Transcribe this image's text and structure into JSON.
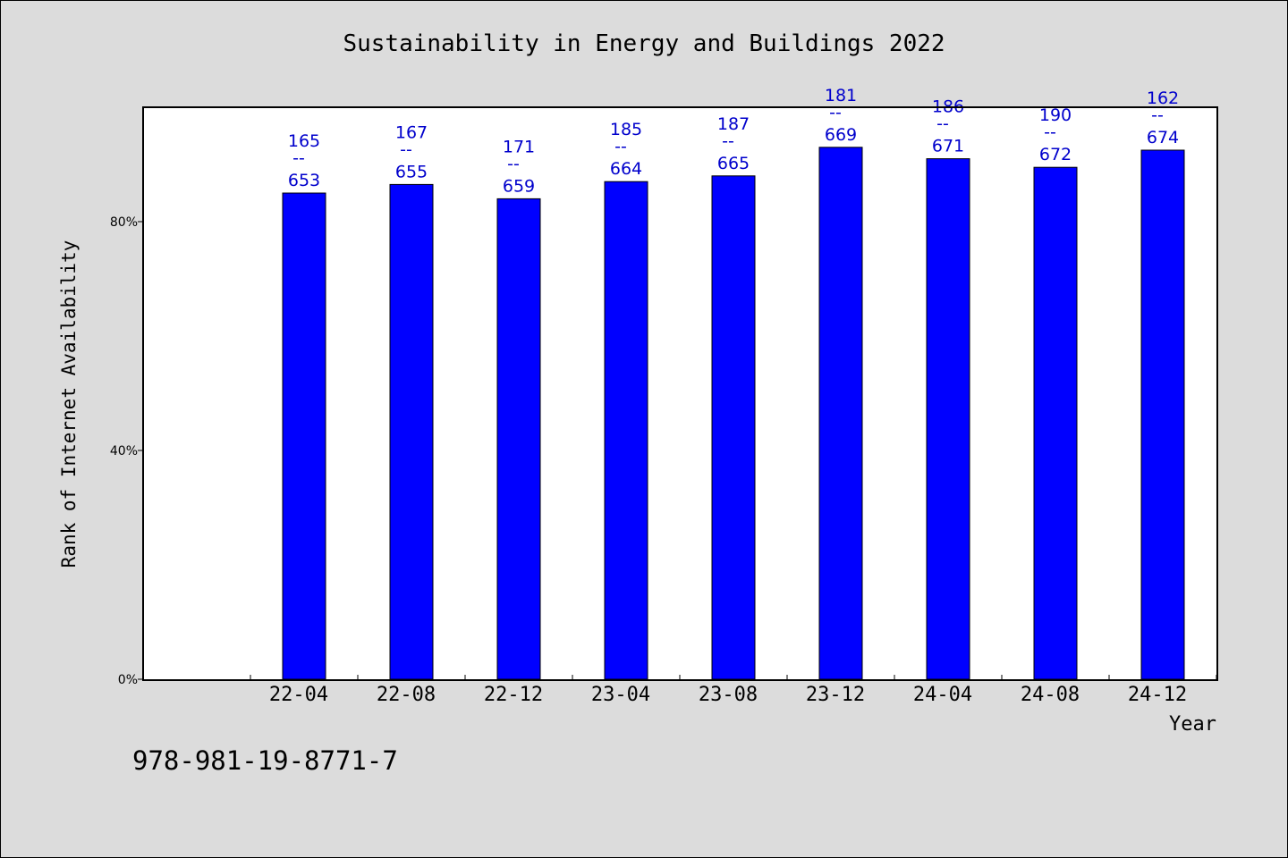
{
  "chart_data": {
    "type": "bar",
    "title": "Sustainability in Energy and Buildings 2022",
    "xlabel": "Year",
    "ylabel": "Rank of Internet Availability",
    "ylim": [
      0,
      100
    ],
    "yticks": [
      0,
      40,
      80
    ],
    "ytick_labels": [
      "0%",
      "40%",
      "80%"
    ],
    "grid": false,
    "categories": [
      "22-04",
      "22-08",
      "22-12",
      "23-04",
      "23-08",
      "23-12",
      "24-04",
      "24-08",
      "24-12"
    ],
    "values": [
      85,
      86.5,
      84,
      87,
      88,
      93,
      91,
      89.5,
      92.5
    ],
    "data_labels_top": [
      "165",
      "167",
      "171",
      "185",
      "187",
      "181",
      "186",
      "190",
      "162"
    ],
    "data_labels_sep": "--",
    "data_labels_bottom": [
      "653",
      "655",
      "659",
      "664",
      "665",
      "669",
      "671",
      "672",
      "674"
    ],
    "bar_color": "#0000ff",
    "label_color": "#0000cc"
  },
  "footer": {
    "isbn": "978-981-19-8771-7"
  }
}
